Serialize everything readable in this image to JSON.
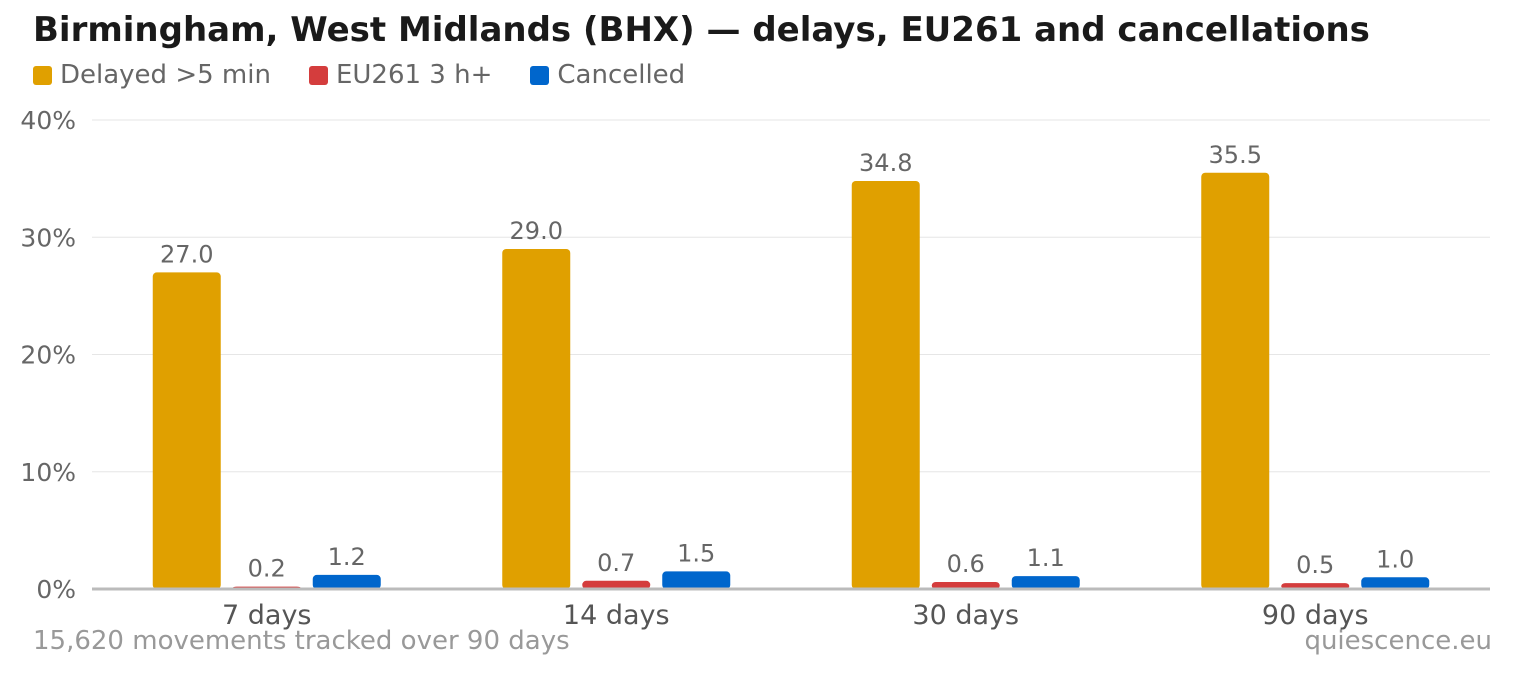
{
  "chart_data": {
    "type": "bar",
    "title": "Birmingham, West Midlands (BHX) — delays, EU261 and cancellations",
    "categories": [
      "7 days",
      "14 days",
      "30 days",
      "90 days"
    ],
    "series": [
      {
        "name": "Delayed >5 min",
        "color": "#e0a000",
        "values": [
          27.0,
          29.0,
          34.8,
          35.5
        ]
      },
      {
        "name": "EU261 3 h+",
        "color": "#d43d3d",
        "values": [
          0.2,
          0.7,
          0.6,
          0.5
        ]
      },
      {
        "name": "Cancelled",
        "color": "#0066cc",
        "values": [
          1.2,
          1.5,
          1.1,
          1.0
        ]
      }
    ],
    "ylim": [
      0,
      40
    ],
    "yticks": [
      "0%",
      "10%",
      "20%",
      "30%",
      "40%"
    ],
    "ytick_values": [
      0,
      10,
      20,
      30,
      40
    ],
    "grid": true,
    "legend_position": "top-left",
    "value_labels": true
  },
  "footer": {
    "left": "15,620 movements tracked over 90 days",
    "right": "quiescence.eu"
  }
}
